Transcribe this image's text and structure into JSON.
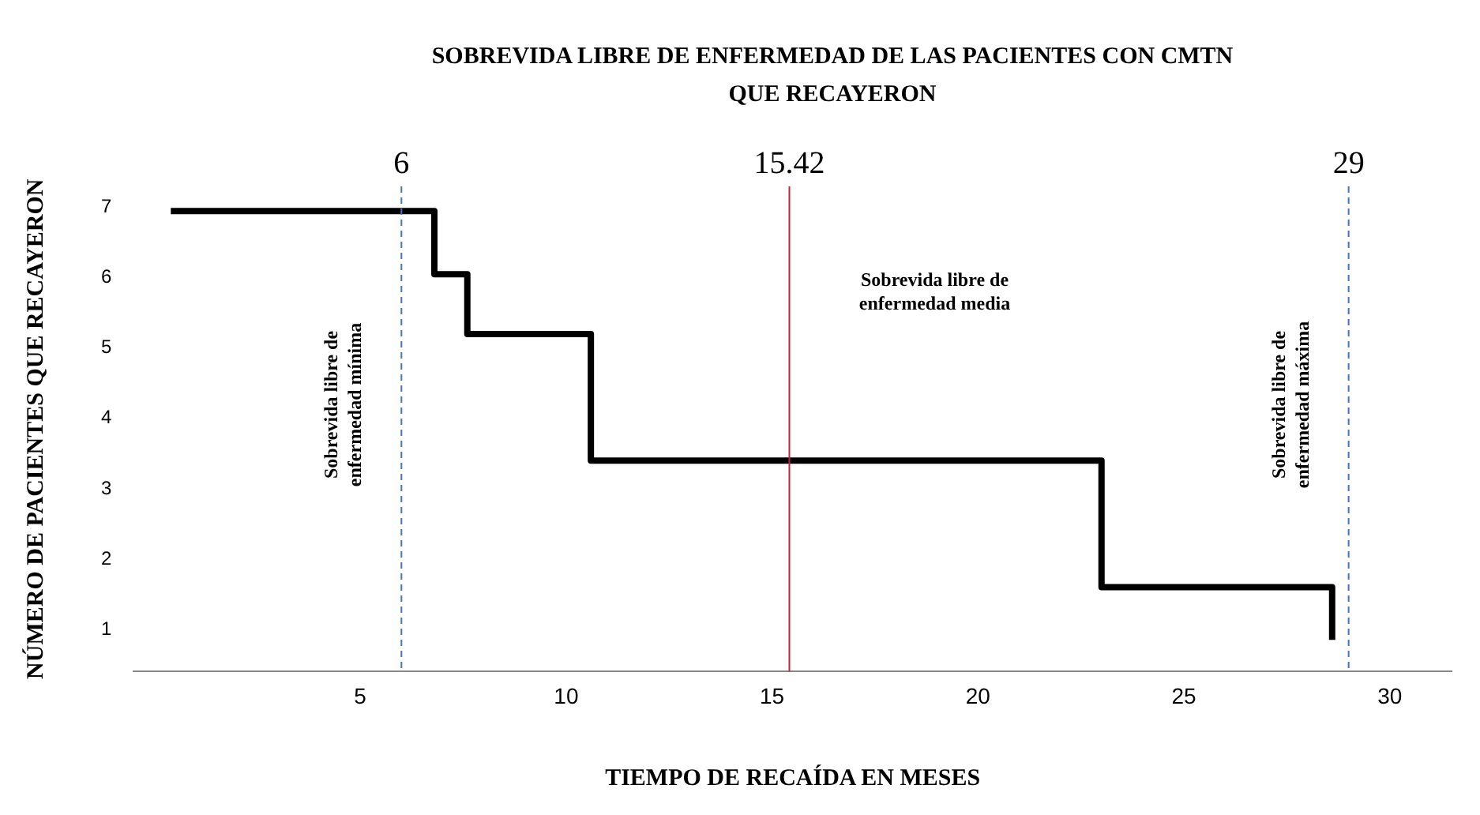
{
  "chart_data": {
    "type": "step",
    "title": "SOBREVIDA LIBRE DE ENFERMEDAD DE LAS PACIENTES CON CMTN QUE RECAYERON",
    "xlabel": "TIEMPO DE RECAÍDA EN MESES",
    "ylabel": "NÚMERO DE PACIENTES QUE RECAYERON",
    "x": [
      0.4,
      6.8,
      7.6,
      10.6,
      23.0,
      28.6
    ],
    "series": [
      {
        "color": "#000000",
        "values": [
          6.95,
          6.05,
          5.2,
          3.4,
          1.6,
          0.85
        ]
      }
    ],
    "xlim": [
      -0.5,
      31.5
    ],
    "xticks": [
      5,
      10,
      15,
      20,
      25,
      30
    ],
    "ylim": [
      0.4,
      7.3
    ],
    "yticks": [
      1,
      2,
      3,
      4,
      5,
      6,
      7
    ],
    "grid": false,
    "legend": false,
    "marker": "none",
    "line_style": "solid",
    "ref_lines": [
      {
        "axis": "x",
        "value": 6,
        "label": "6",
        "color": "#4472c4",
        "line_style": "dashed"
      },
      {
        "axis": "x",
        "value": 15.42,
        "label": "15.42",
        "color": "#c0263a",
        "line_style": "solid"
      },
      {
        "axis": "x",
        "value": 29,
        "label": "29",
        "color": "#4472c4",
        "line_style": "dashed"
      }
    ],
    "annotations": [
      "Sobrevida libre de enfermedad mínima",
      "Sobrevida libre de enfermedad media",
      "Sobrevida libre de enfermedad máxima"
    ]
  }
}
